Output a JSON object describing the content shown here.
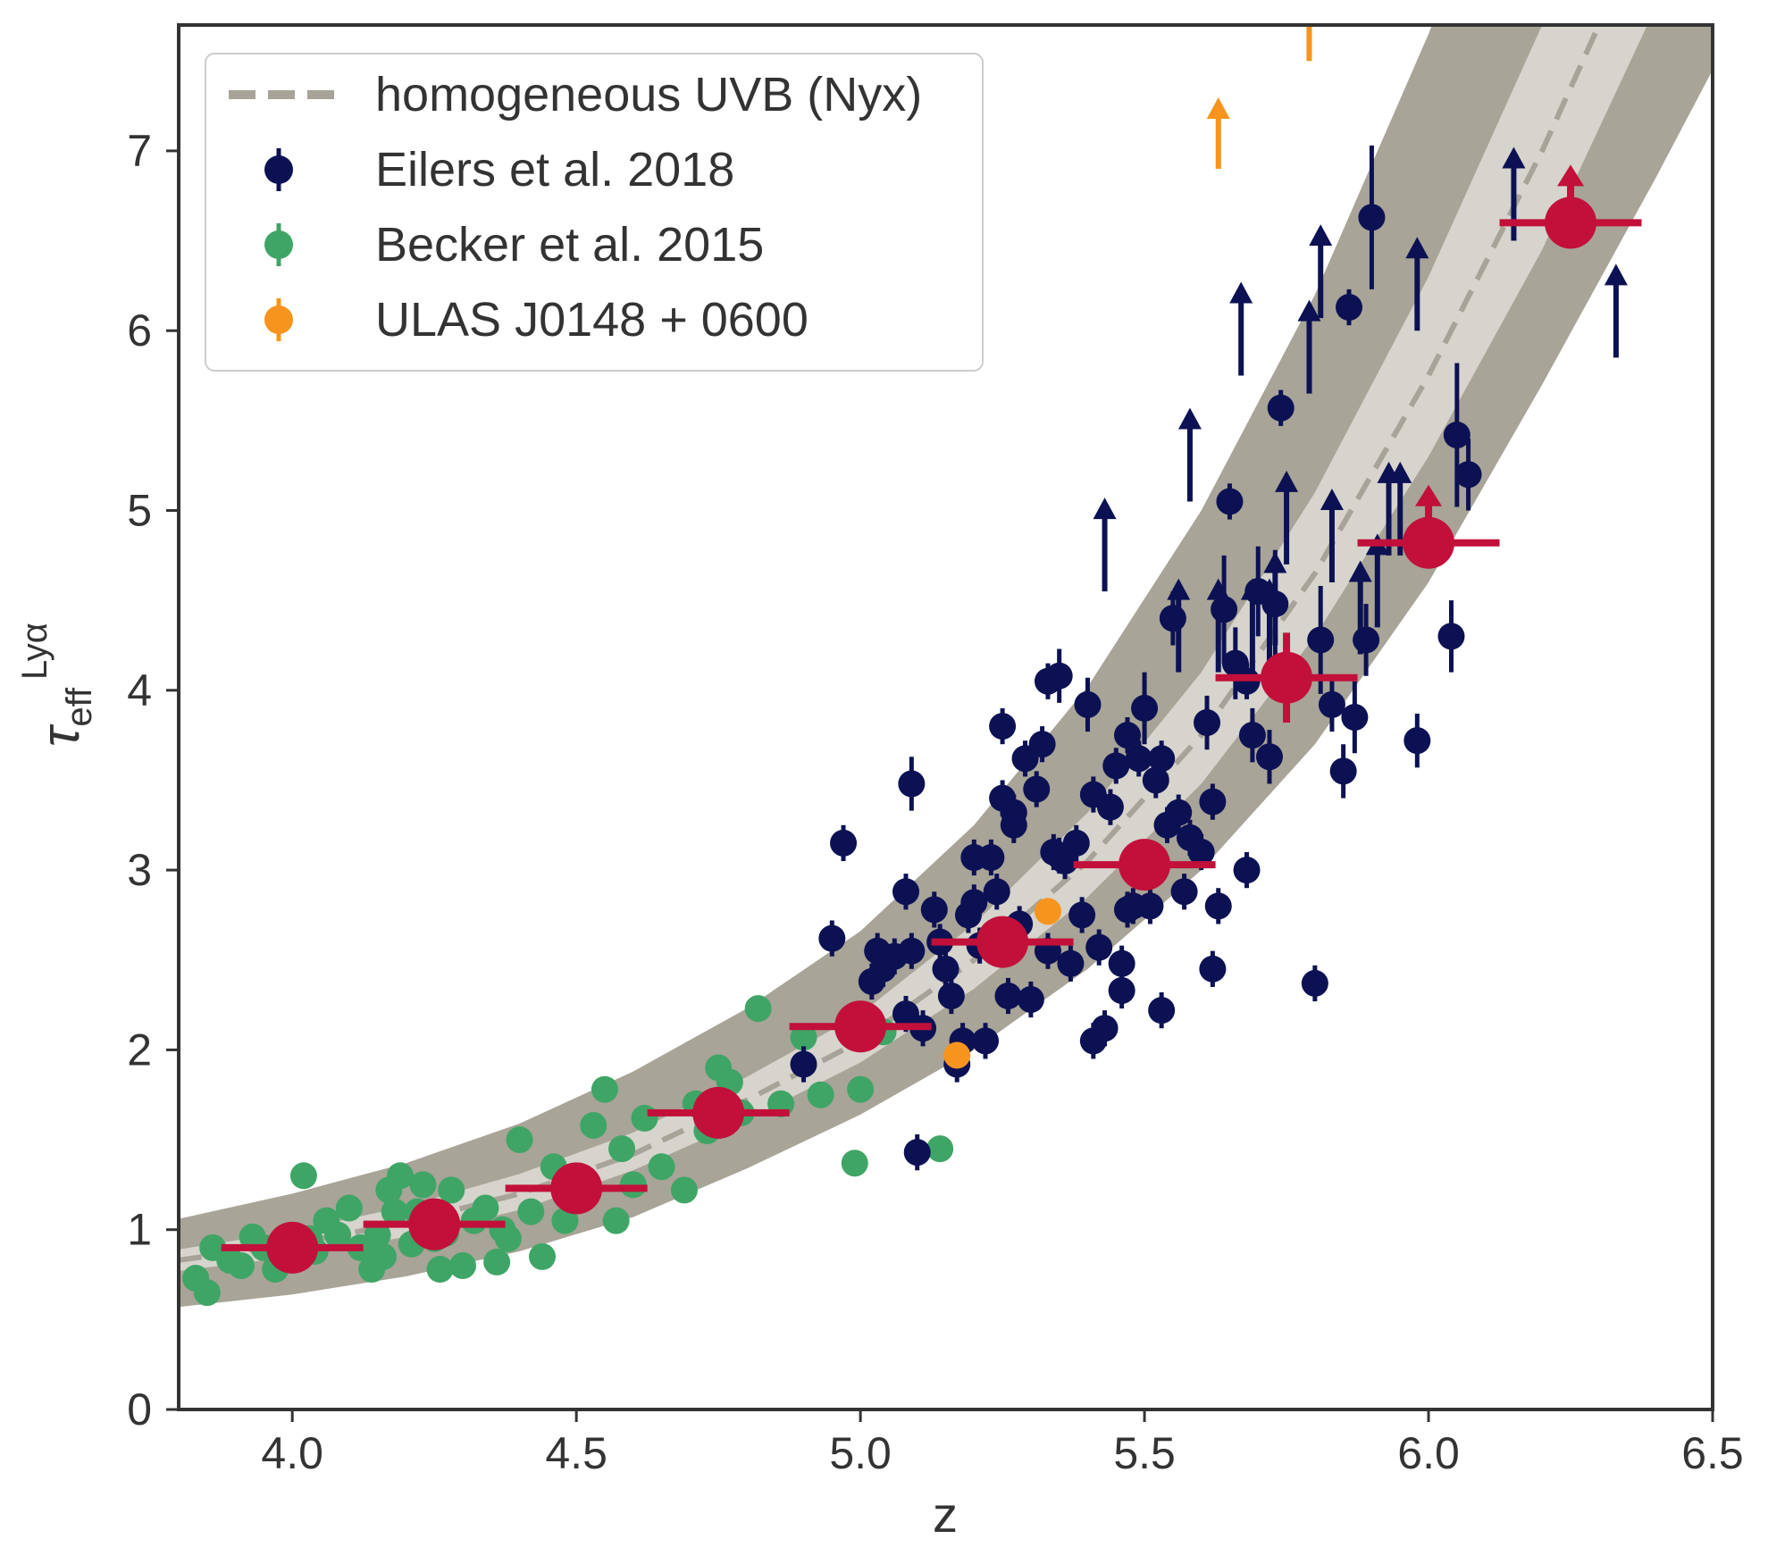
{
  "chart_data": {
    "type": "scatter",
    "title": "",
    "xlabel": "z",
    "ylabel": "τ",
    "ylabel_sup": "Lyα",
    "ylabel_sub": "eff",
    "xlim": [
      3.8,
      6.5
    ],
    "ylim": [
      0,
      7.7
    ],
    "xticks": [
      4.0,
      4.5,
      5.0,
      5.5,
      6.0,
      6.5
    ],
    "xtick_labels": [
      "4.0",
      "4.5",
      "5.0",
      "5.5",
      "6.0",
      "6.5"
    ],
    "yticks": [
      0,
      1,
      2,
      3,
      4,
      5,
      6,
      7
    ],
    "ytick_labels": [
      "0",
      "1",
      "2",
      "3",
      "4",
      "5",
      "6",
      "7"
    ],
    "grid": false,
    "legend_position": "top-left",
    "colors": {
      "eilers": "#0c1154",
      "becker": "#3fa566",
      "ulas": "#f7941d",
      "binned": "#c2103a",
      "model_line": "#a7a398",
      "band_outer": "#a8a497",
      "band_inner": "#d6d4cc",
      "axes": "#333333"
    },
    "legend": [
      {
        "key": "model",
        "label": "homogeneous UVB (Nyx)"
      },
      {
        "key": "eilers",
        "label": "Eilers et al. 2018"
      },
      {
        "key": "becker",
        "label": "Becker et al. 2015"
      },
      {
        "key": "ulas",
        "label": "ULAS J0148 + 0600"
      }
    ],
    "model": {
      "z": [
        3.8,
        4.0,
        4.2,
        4.4,
        4.6,
        4.8,
        5.0,
        5.2,
        5.4,
        5.6,
        5.8,
        6.0,
        6.2,
        6.4,
        6.5
      ],
      "median": [
        0.83,
        0.92,
        1.04,
        1.2,
        1.42,
        1.72,
        2.05,
        2.5,
        3.05,
        3.75,
        4.65,
        5.75,
        7.0,
        8.4,
        9.2
      ],
      "inner_low": [
        0.77,
        0.85,
        0.96,
        1.11,
        1.33,
        1.61,
        1.93,
        2.34,
        2.85,
        3.48,
        4.3,
        5.3,
        6.45,
        7.8,
        8.5
      ],
      "inner_high": [
        0.89,
        0.99,
        1.13,
        1.31,
        1.54,
        1.85,
        2.2,
        2.7,
        3.32,
        4.1,
        5.1,
        6.3,
        7.7,
        9.2,
        10.0
      ],
      "outer_low": [
        0.57,
        0.64,
        0.74,
        0.88,
        1.07,
        1.34,
        1.64,
        2.0,
        2.45,
        3.0,
        3.7,
        4.6,
        5.7,
        6.85,
        7.45
      ],
      "outer_high": [
        1.06,
        1.2,
        1.37,
        1.59,
        1.88,
        2.23,
        2.66,
        3.25,
        4.02,
        5.0,
        6.2,
        7.65,
        9.3,
        11.0,
        12.0
      ]
    },
    "becker": {
      "z": [
        3.83,
        3.86,
        3.89,
        3.91,
        3.93,
        3.95,
        3.97,
        3.99,
        4.01,
        4.02,
        4.04,
        4.06,
        4.08,
        4.1,
        4.12,
        4.14,
        4.15,
        4.17,
        4.18,
        4.19,
        4.21,
        4.22,
        4.23,
        4.25,
        4.26,
        4.28,
        4.3,
        4.32,
        4.34,
        4.36,
        4.38,
        4.4,
        4.44,
        4.42,
        4.46,
        4.48,
        4.5,
        4.53,
        4.55,
        4.57,
        4.58,
        4.6,
        4.62,
        4.65,
        4.69,
        4.71,
        4.73,
        4.75,
        4.77,
        4.79,
        4.82,
        4.86,
        4.9,
        4.93,
        4.99,
        5.0,
        5.04,
        5.14,
        3.85,
        4.03,
        4.16,
        4.27,
        4.37
      ],
      "y": [
        0.73,
        0.9,
        0.83,
        0.8,
        0.96,
        0.9,
        0.78,
        0.85,
        0.93,
        1.3,
        0.88,
        1.05,
        0.97,
        1.12,
        0.9,
        0.78,
        0.97,
        1.22,
        1.1,
        1.3,
        0.92,
        1.1,
        1.25,
        0.95,
        0.78,
        1.22,
        0.8,
        1.05,
        1.12,
        0.82,
        0.95,
        1.5,
        0.85,
        1.1,
        1.35,
        1.05,
        1.25,
        1.58,
        1.78,
        1.05,
        1.45,
        1.25,
        1.62,
        1.35,
        1.22,
        1.7,
        1.55,
        1.9,
        1.82,
        1.65,
        2.23,
        1.7,
        2.07,
        1.75,
        1.37,
        1.78,
        2.1,
        1.45,
        0.65,
        0.95,
        0.85,
        0.98,
        1.0
      ]
    },
    "ulas": {
      "points": {
        "z": [
          5.17,
          5.33
        ],
        "y": [
          1.97,
          2.77
        ]
      },
      "lower_limits": {
        "z": [
          5.63,
          5.79
        ],
        "y": [
          6.9,
          7.5
        ]
      }
    },
    "eilers": {
      "points": {
        "z": [
          4.9,
          4.95,
          4.97,
          5.02,
          5.03,
          5.04,
          5.06,
          5.08,
          5.08,
          5.09,
          5.1,
          5.11,
          5.13,
          5.14,
          5.15,
          5.16,
          5.17,
          5.18,
          5.19,
          5.2,
          5.21,
          5.22,
          5.23,
          5.24,
          5.25,
          5.25,
          5.26,
          5.27,
          5.28,
          5.29,
          5.3,
          5.31,
          5.32,
          5.33,
          5.34,
          5.35,
          5.36,
          5.37,
          5.38,
          5.39,
          5.4,
          5.41,
          5.42,
          5.43,
          5.44,
          5.45,
          5.46,
          5.47,
          5.48,
          5.49,
          5.5,
          5.51,
          5.52,
          5.53,
          5.54,
          5.55,
          5.56,
          5.57,
          5.58,
          5.6,
          5.61,
          5.62,
          5.63,
          5.64,
          5.65,
          5.66,
          5.68,
          5.69,
          5.7,
          5.72,
          5.73,
          5.74,
          5.8,
          5.81,
          5.83,
          5.85,
          5.86,
          5.87,
          5.89,
          5.9,
          5.98,
          6.04,
          6.05,
          6.07,
          5.09,
          5.33,
          5.35,
          5.41,
          5.46,
          5.53,
          5.62,
          5.68,
          5.2,
          5.27,
          5.47
        ],
        "y": [
          1.92,
          2.62,
          3.15,
          2.38,
          2.55,
          2.45,
          2.52,
          2.88,
          2.2,
          2.55,
          1.43,
          2.12,
          2.78,
          2.6,
          2.45,
          2.3,
          1.92,
          2.05,
          2.75,
          3.07,
          2.58,
          2.05,
          3.07,
          2.88,
          3.4,
          3.8,
          2.3,
          3.25,
          2.7,
          3.62,
          2.28,
          3.45,
          3.7,
          2.55,
          3.1,
          4.08,
          3.05,
          2.48,
          3.15,
          2.75,
          3.92,
          2.05,
          2.57,
          2.12,
          3.35,
          3.58,
          2.48,
          3.75,
          2.8,
          3.62,
          3.9,
          2.8,
          3.5,
          3.62,
          3.25,
          4.4,
          3.32,
          2.88,
          3.18,
          3.1,
          3.82,
          2.45,
          2.8,
          4.45,
          5.05,
          4.15,
          3.0,
          3.75,
          4.55,
          3.63,
          4.48,
          5.57,
          2.37,
          4.28,
          3.92,
          3.55,
          6.13,
          3.85,
          4.28,
          6.63,
          3.72,
          4.3,
          5.42,
          5.2,
          3.48,
          4.05,
          3.08,
          3.42,
          2.33,
          2.22,
          3.38,
          4.05,
          2.82,
          3.32,
          2.78
        ],
        "err": [
          0.1,
          0.1,
          0.1,
          0.1,
          0.1,
          0.1,
          0.1,
          0.1,
          0.1,
          0.1,
          0.1,
          0.1,
          0.1,
          0.1,
          0.1,
          0.1,
          0.1,
          0.1,
          0.1,
          0.1,
          0.1,
          0.1,
          0.1,
          0.1,
          0.1,
          0.1,
          0.1,
          0.1,
          0.1,
          0.1,
          0.1,
          0.1,
          0.1,
          0.1,
          0.1,
          0.15,
          0.1,
          0.1,
          0.1,
          0.1,
          0.15,
          0.1,
          0.1,
          0.1,
          0.1,
          0.1,
          0.1,
          0.1,
          0.1,
          0.1,
          0.2,
          0.1,
          0.1,
          0.1,
          0.1,
          0.15,
          0.1,
          0.1,
          0.1,
          0.1,
          0.15,
          0.1,
          0.1,
          0.3,
          0.1,
          0.2,
          0.1,
          0.15,
          0.25,
          0.15,
          0.3,
          0.1,
          0.1,
          0.3,
          0.15,
          0.15,
          0.1,
          0.2,
          0.2,
          0.4,
          0.15,
          0.2,
          0.4,
          0.2,
          0.15,
          0.1,
          0.1,
          0.1,
          0.1,
          0.1,
          0.1,
          0.1,
          0.1,
          0.1,
          0.1
        ]
      },
      "lower_limits": {
        "z": [
          5.43,
          5.58,
          5.63,
          5.67,
          5.69,
          5.73,
          5.75,
          5.79,
          5.81,
          5.83,
          5.88,
          5.91,
          5.93,
          5.95,
          5.98,
          6.15,
          6.33,
          5.72,
          5.56
        ],
        "y": [
          4.55,
          5.05,
          4.1,
          5.75,
          4.1,
          4.25,
          4.7,
          5.65,
          6.07,
          4.6,
          4.2,
          4.35,
          4.75,
          4.75,
          6.0,
          6.5,
          5.85,
          4.1,
          4.1
        ]
      }
    },
    "binned": {
      "z": [
        4.0,
        4.25,
        4.5,
        4.75,
        5.0,
        5.25,
        5.5,
        5.75,
        6.0,
        6.25
      ],
      "y": [
        0.9,
        1.03,
        1.23,
        1.65,
        2.13,
        2.6,
        3.03,
        4.07,
        4.82,
        6.6
      ],
      "xerr": 0.125,
      "yerr": [
        0.05,
        0.05,
        0.05,
        0.05,
        0.05,
        0.05,
        0.05,
        0.25,
        0.0,
        0.0
      ],
      "lower_limit": [
        false,
        false,
        false,
        false,
        false,
        false,
        false,
        false,
        true,
        true
      ]
    }
  }
}
